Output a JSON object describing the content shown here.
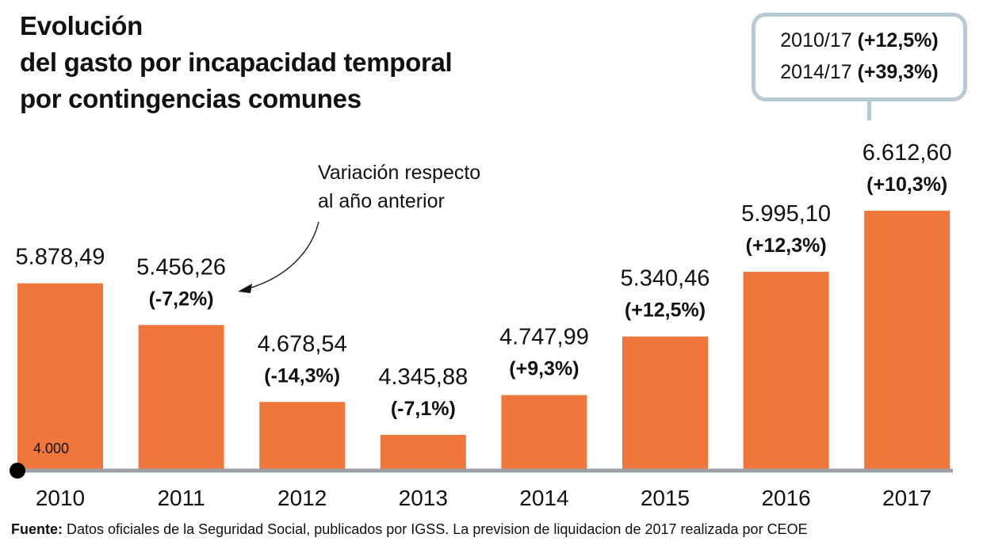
{
  "title_lines": [
    "Evolución",
    "del gasto por incapacidad temporal",
    "por contingencias comunes"
  ],
  "callout": {
    "lines": [
      {
        "period": "2010/17",
        "change": "(+12,5%)"
      },
      {
        "period": "2014/17",
        "change": "(+39,3%)"
      }
    ]
  },
  "annotation": {
    "lines": [
      "Variación respecto",
      "al año anterior"
    ],
    "arrow_target": "2011"
  },
  "source": {
    "label": "Fuente:",
    "text": "Datos oficiales de la Seguridad Social, publicados por IGSS. La prevision de liquidacion de 2017  realizada por CEOE"
  },
  "colors": {
    "bar": "#ef773c",
    "axis": "#9aa0a4",
    "callout_border": "#b7c9d3",
    "text": "#111111"
  },
  "chart_data": {
    "type": "bar",
    "title": "Evolución del gasto por incapacidad temporal por contingencias comunes",
    "xlabel": "",
    "ylabel": "",
    "categories": [
      "2010",
      "2011",
      "2012",
      "2013",
      "2014",
      "2015",
      "2016",
      "2017"
    ],
    "values": [
      5878.49,
      5456.26,
      4678.54,
      4345.88,
      4747.99,
      5340.46,
      5995.1,
      6612.6
    ],
    "value_labels": [
      "5.878,49",
      "5.456,26",
      "4.678,54",
      "4.345,88",
      "4.747,99",
      "5.340,46",
      "5.995,10",
      "6.612,60"
    ],
    "change_labels": [
      "",
      "(-7,2%)",
      "(-14,3%)",
      "(-7,1%)",
      "(+9,3%)",
      "(+12,5%)",
      "(+12,3%)",
      "(+10,3%)"
    ],
    "baseline_label": "4.000",
    "ylim": [
      4000,
      6612.6
    ],
    "grid": false,
    "legend": "none"
  }
}
